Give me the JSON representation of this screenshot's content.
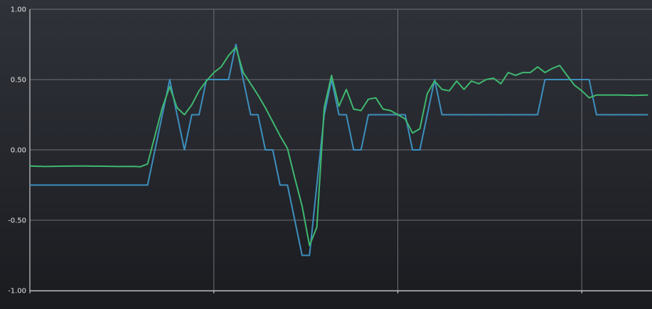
{
  "chart_data": {
    "type": "line",
    "title": "",
    "xlabel": "",
    "ylabel": "",
    "ylim": [
      -1.0,
      1.0
    ],
    "xlim": [
      0,
      84
    ],
    "grid": true,
    "yticks": [
      "1.00",
      "0.50",
      "0.00",
      "-0.50",
      "-1.00"
    ],
    "ytick_values": [
      1.0,
      0.5,
      0.0,
      -0.5,
      -1.0
    ],
    "xtick_values": [
      0,
      25,
      50,
      75
    ],
    "series": [
      {
        "color": "#3d8fbe",
        "x": [
          0,
          16,
          19,
          21,
          22,
          23,
          24,
          25,
          26,
          27,
          28,
          29,
          30,
          31,
          32,
          33,
          34,
          35,
          36,
          37,
          38,
          39,
          40,
          41,
          42,
          43,
          44,
          45,
          46,
          47,
          48,
          49,
          50,
          51,
          52,
          53,
          54,
          55,
          56,
          57,
          58,
          59,
          60,
          61,
          62,
          63,
          64,
          65,
          66,
          67,
          68,
          69,
          70,
          71,
          72,
          73,
          74,
          75,
          76,
          77,
          78,
          79,
          80,
          81,
          82,
          83,
          84
        ],
        "values": [
          -0.25,
          -0.25,
          0.5,
          0,
          0.25,
          0.25,
          0.5,
          0.5,
          0.5,
          0.5,
          0.75,
          0.5,
          0.25,
          0.25,
          0,
          0,
          -0.25,
          -0.25,
          -0.5,
          -0.75,
          -0.75,
          -0.25,
          0.25,
          0.5,
          0.25,
          0.25,
          0,
          0,
          0.25,
          0.25,
          0.25,
          0.25,
          0.25,
          0.25,
          0,
          0,
          0.25,
          0.5,
          0.25,
          0.25,
          0.25,
          0.25,
          0.25,
          0.25,
          0.25,
          0.25,
          0.25,
          0.25,
          0.25,
          0.25,
          0.25,
          0.25,
          0.5,
          0.5,
          0.5,
          0.5,
          0.5,
          0.5,
          0.5,
          0.25,
          0.25,
          0.25,
          0.25,
          0.25,
          0.25,
          0.25,
          0.25
        ]
      },
      {
        "color": "#3fb86f",
        "x": [
          0,
          2,
          4,
          6,
          8,
          10,
          12,
          14,
          15,
          16,
          17,
          18,
          19,
          20,
          21,
          22,
          23,
          24,
          25,
          26,
          27,
          28,
          29,
          30,
          31,
          32,
          33,
          34,
          35,
          36,
          37,
          38,
          39,
          40,
          41,
          42,
          43,
          44,
          45,
          46,
          47,
          48,
          49,
          50,
          51,
          52,
          53,
          54,
          55,
          56,
          57,
          58,
          59,
          60,
          61,
          62,
          63,
          64,
          65,
          66,
          67,
          68,
          69,
          70,
          71,
          72,
          73,
          74,
          75,
          76,
          77,
          78,
          80,
          82,
          84
        ],
        "values": [
          -0.115,
          -0.118,
          -0.116,
          -0.115,
          -0.115,
          -0.116,
          -0.118,
          -0.117,
          -0.12,
          -0.1,
          0.1,
          0.3,
          0.45,
          0.3,
          0.25,
          0.32,
          0.42,
          0.49,
          0.55,
          0.59,
          0.67,
          0.73,
          0.55,
          0.47,
          0.39,
          0.3,
          0.2,
          0.1,
          0.01,
          -0.2,
          -0.4,
          -0.68,
          -0.55,
          0.3,
          0.53,
          0.31,
          0.43,
          0.29,
          0.28,
          0.36,
          0.37,
          0.29,
          0.28,
          0.25,
          0.22,
          0.12,
          0.15,
          0.4,
          0.49,
          0.43,
          0.42,
          0.49,
          0.43,
          0.49,
          0.47,
          0.5,
          0.51,
          0.47,
          0.55,
          0.53,
          0.55,
          0.55,
          0.59,
          0.55,
          0.58,
          0.6,
          0.53,
          0.46,
          0.42,
          0.37,
          0.39,
          0.39,
          0.39,
          0.388,
          0.39
        ]
      }
    ]
  }
}
